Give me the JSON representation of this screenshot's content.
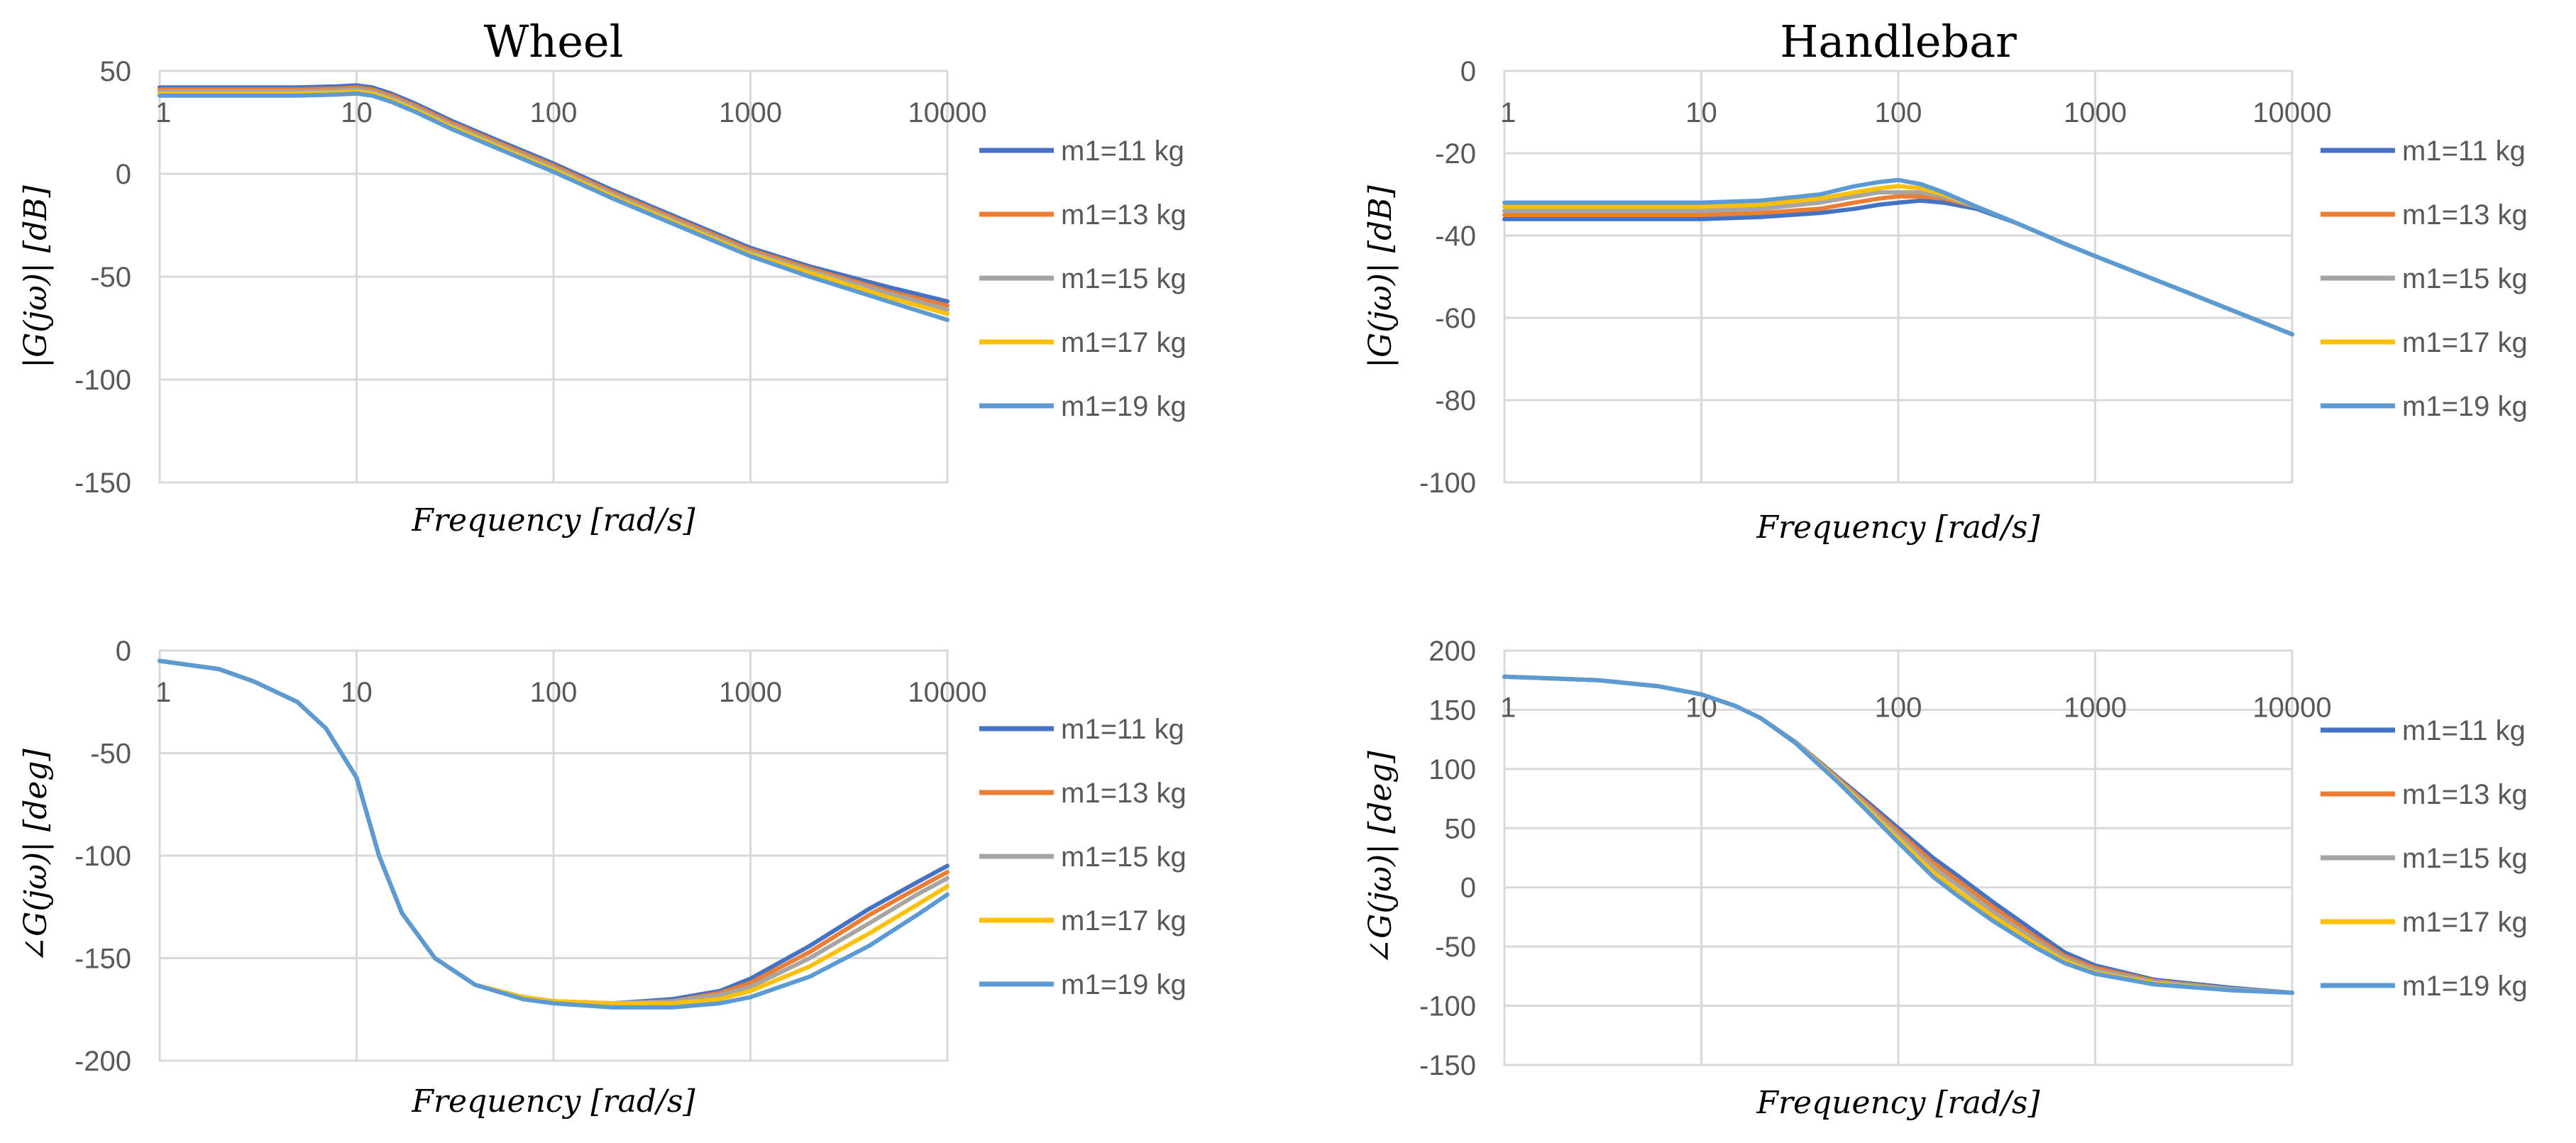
{
  "figure": {
    "col_titles": [
      "Wheel",
      "Handlebar"
    ]
  },
  "chart_data": [
    {
      "id": "wheel-mag",
      "type": "line",
      "title": "Wheel",
      "xlabel": "Frequency [rad/s]",
      "ylabel": "|G(jω)| [dB]",
      "xscale": "log",
      "xlim": [
        1,
        10000
      ],
      "ylim": [
        -150,
        50
      ],
      "x_ticks": [
        1,
        10,
        100,
        1000,
        10000
      ],
      "x_tick_labels": [
        "1",
        "10",
        "100",
        "1000",
        "10000"
      ],
      "y_ticks": [
        50,
        0,
        -50,
        -100,
        -150
      ],
      "y_tick_labels": [
        "50",
        "0",
        "-50",
        "-100",
        "-150"
      ],
      "x_tick_labels_position": "top",
      "grid": true,
      "legend_position": "right",
      "x": [
        1,
        2,
        5,
        8,
        10,
        12,
        15,
        20,
        30,
        50,
        100,
        200,
        500,
        1000,
        2000,
        5000,
        10000
      ],
      "series": [
        {
          "name": "m1=11 kg",
          "color": "#4472C4",
          "values": [
            42,
            42,
            42,
            42.5,
            43,
            42,
            39,
            34,
            26,
            17,
            5,
            -8,
            -24,
            -36,
            -45,
            -55,
            -62
          ]
        },
        {
          "name": "m1=13 kg",
          "color": "#ED7D31",
          "values": [
            41,
            41,
            41,
            41.5,
            42,
            41,
            38,
            33,
            25,
            16,
            4,
            -9,
            -25,
            -37,
            -46,
            -57,
            -64
          ]
        },
        {
          "name": "m1=15 kg",
          "color": "#A5A5A5",
          "values": [
            40,
            40,
            40,
            40.5,
            41,
            40,
            37,
            32,
            24,
            15,
            3,
            -10,
            -26,
            -38,
            -47,
            -58,
            -66
          ]
        },
        {
          "name": "m1=17 kg",
          "color": "#FFC000",
          "values": [
            39,
            39,
            39,
            39.5,
            40,
            39,
            36,
            31,
            23,
            14,
            2,
            -11,
            -27,
            -39,
            -48,
            -60,
            -68
          ]
        },
        {
          "name": "m1=19 kg",
          "color": "#5B9BD5",
          "values": [
            38,
            38,
            38,
            38.5,
            39,
            38,
            35,
            30,
            22,
            13,
            1,
            -12,
            -28,
            -40,
            -50,
            -62,
            -71
          ]
        }
      ]
    },
    {
      "id": "handlebar-mag",
      "type": "line",
      "title": "Handlebar",
      "xlabel": "Frequency [rad/s]",
      "ylabel": "|G(jω)| [dB]",
      "xscale": "log",
      "xlim": [
        1,
        10000
      ],
      "ylim": [
        -100,
        0
      ],
      "x_ticks": [
        1,
        10,
        100,
        1000,
        10000
      ],
      "x_tick_labels": [
        "1",
        "10",
        "100",
        "1000",
        "10000"
      ],
      "y_ticks": [
        0,
        -20,
        -40,
        -60,
        -80,
        -100
      ],
      "y_tick_labels": [
        "0",
        "-20",
        "-40",
        "-60",
        "-80",
        "-100"
      ],
      "x_tick_labels_position": "top",
      "grid": true,
      "legend_position": "right",
      "x": [
        1,
        5,
        10,
        20,
        40,
        60,
        80,
        100,
        130,
        170,
        250,
        400,
        700,
        1000,
        3000,
        10000
      ],
      "series": [
        {
          "name": "m1=11 kg",
          "color": "#4472C4",
          "values": [
            -36,
            -36,
            -36,
            -35.5,
            -34.5,
            -33.5,
            -32.5,
            -32,
            -31.5,
            -32,
            -33.5,
            -37,
            -42,
            -45,
            -54,
            -64
          ]
        },
        {
          "name": "m1=13 kg",
          "color": "#ED7D31",
          "values": [
            -35,
            -35,
            -35,
            -34.5,
            -33.5,
            -32,
            -31,
            -30.5,
            -30.5,
            -31,
            -33,
            -37,
            -42,
            -45,
            -54,
            -64
          ]
        },
        {
          "name": "m1=15 kg",
          "color": "#A5A5A5",
          "values": [
            -34,
            -34,
            -34,
            -33.5,
            -32,
            -30.5,
            -29.5,
            -29.5,
            -29.5,
            -30.5,
            -33,
            -37,
            -42,
            -45,
            -54,
            -64
          ]
        },
        {
          "name": "m1=17 kg",
          "color": "#FFC000",
          "values": [
            -33,
            -33,
            -33,
            -32.5,
            -31,
            -29.5,
            -28.5,
            -28,
            -28.5,
            -30,
            -33,
            -37,
            -42,
            -45,
            -54,
            -64
          ]
        },
        {
          "name": "m1=19 kg",
          "color": "#5B9BD5",
          "values": [
            -32,
            -32,
            -32,
            -31.5,
            -30,
            -28,
            -27,
            -26.5,
            -27.5,
            -29.5,
            -33,
            -37,
            -42,
            -45,
            -54,
            -64
          ]
        }
      ]
    },
    {
      "id": "wheel-phase",
      "type": "line",
      "title": "",
      "xlabel": "Frequency [rad/s]",
      "ylabel": "∠G(jω)| [deg]",
      "xscale": "log",
      "xlim": [
        1,
        10000
      ],
      "ylim": [
        -200,
        0
      ],
      "x_ticks": [
        1,
        10,
        100,
        1000,
        10000
      ],
      "x_tick_labels": [
        "1",
        "10",
        "100",
        "1000",
        "10000"
      ],
      "y_ticks": [
        0,
        -50,
        -100,
        -150,
        -200
      ],
      "y_tick_labels": [
        "0",
        "-50",
        "-100",
        "-150",
        "-200"
      ],
      "x_tick_labels_position": "top",
      "grid": true,
      "legend_position": "right",
      "x": [
        1,
        2,
        3,
        5,
        7,
        10,
        13,
        17,
        25,
        40,
        70,
        100,
        200,
        400,
        700,
        1000,
        2000,
        4000,
        7000,
        10000
      ],
      "series": [
        {
          "name": "m1=11 kg",
          "color": "#4472C4",
          "values": [
            -5,
            -9,
            -15,
            -25,
            -38,
            -62,
            -100,
            -128,
            -150,
            -163,
            -169,
            -171,
            -172,
            -170,
            -166,
            -160,
            -144,
            -126,
            -113,
            -105
          ]
        },
        {
          "name": "m1=13 kg",
          "color": "#ED7D31",
          "values": [
            -5,
            -9,
            -15,
            -25,
            -38,
            -62,
            -100,
            -128,
            -150,
            -163,
            -169,
            -171,
            -172,
            -171,
            -167,
            -162,
            -147,
            -129,
            -116,
            -108
          ]
        },
        {
          "name": "m1=15 kg",
          "color": "#A5A5A5",
          "values": [
            -5,
            -9,
            -15,
            -25,
            -38,
            -62,
            -100,
            -128,
            -150,
            -163,
            -169,
            -171,
            -172,
            -171,
            -168,
            -164,
            -150,
            -133,
            -119,
            -111
          ]
        },
        {
          "name": "m1=17 kg",
          "color": "#FFC000",
          "values": [
            -5,
            -9,
            -15,
            -25,
            -38,
            -62,
            -100,
            -128,
            -150,
            -163,
            -169,
            -171,
            -172,
            -172,
            -170,
            -166,
            -154,
            -138,
            -124,
            -115
          ]
        },
        {
          "name": "m1=19 kg",
          "color": "#5B9BD5",
          "values": [
            -5,
            -9,
            -15,
            -25,
            -38,
            -62,
            -100,
            -128,
            -150,
            -163,
            -170,
            -172,
            -174,
            -174,
            -172,
            -169,
            -159,
            -144,
            -129,
            -119
          ]
        }
      ]
    },
    {
      "id": "handlebar-phase",
      "type": "line",
      "title": "",
      "xlabel": "Frequency [rad/s]",
      "ylabel": "∠G(jω)| [deg]",
      "xscale": "log",
      "xlim": [
        1,
        10000
      ],
      "ylim": [
        -150,
        200
      ],
      "x_ticks": [
        1,
        10,
        100,
        1000,
        10000
      ],
      "x_tick_labels": [
        "1",
        "10",
        "100",
        "1000",
        "10000"
      ],
      "y_ticks": [
        200,
        150,
        100,
        50,
        0,
        -50,
        -100,
        -150
      ],
      "y_tick_labels": [
        "200",
        "150",
        "100",
        "50",
        "0",
        "-50",
        "-100",
        "-150"
      ],
      "x_tick_labels_position": "top",
      "grid": true,
      "legend_position": "right",
      "x": [
        1,
        3,
        6,
        10,
        15,
        20,
        30,
        50,
        70,
        100,
        150,
        200,
        300,
        500,
        700,
        1000,
        2000,
        5000,
        10000
      ],
      "series": [
        {
          "name": "m1=11 kg",
          "color": "#4472C4",
          "values": [
            178,
            175,
            170,
            163,
            153,
            143,
            123,
            92,
            72,
            50,
            25,
            10,
            -12,
            -38,
            -55,
            -66,
            -78,
            -85,
            -89
          ]
        },
        {
          "name": "m1=13 kg",
          "color": "#ED7D31",
          "values": [
            178,
            175,
            170,
            163,
            153,
            143,
            123,
            91,
            70,
            47,
            21,
            6,
            -16,
            -42,
            -58,
            -68,
            -79,
            -86,
            -89
          ]
        },
        {
          "name": "m1=15 kg",
          "color": "#A5A5A5",
          "values": [
            178,
            175,
            170,
            163,
            153,
            143,
            123,
            90,
            68,
            44,
            17,
            2,
            -20,
            -45,
            -60,
            -70,
            -80,
            -86,
            -89
          ]
        },
        {
          "name": "m1=17 kg",
          "color": "#FFC000",
          "values": [
            178,
            175,
            170,
            163,
            153,
            143,
            122,
            89,
            66,
            41,
            13,
            -3,
            -24,
            -48,
            -62,
            -72,
            -81,
            -87,
            -89
          ]
        },
        {
          "name": "m1=19 kg",
          "color": "#5B9BD5",
          "values": [
            178,
            175,
            170,
            163,
            153,
            143,
            122,
            88,
            64,
            38,
            9,
            -7,
            -28,
            -51,
            -64,
            -73,
            -82,
            -87,
            -89
          ]
        }
      ]
    }
  ]
}
